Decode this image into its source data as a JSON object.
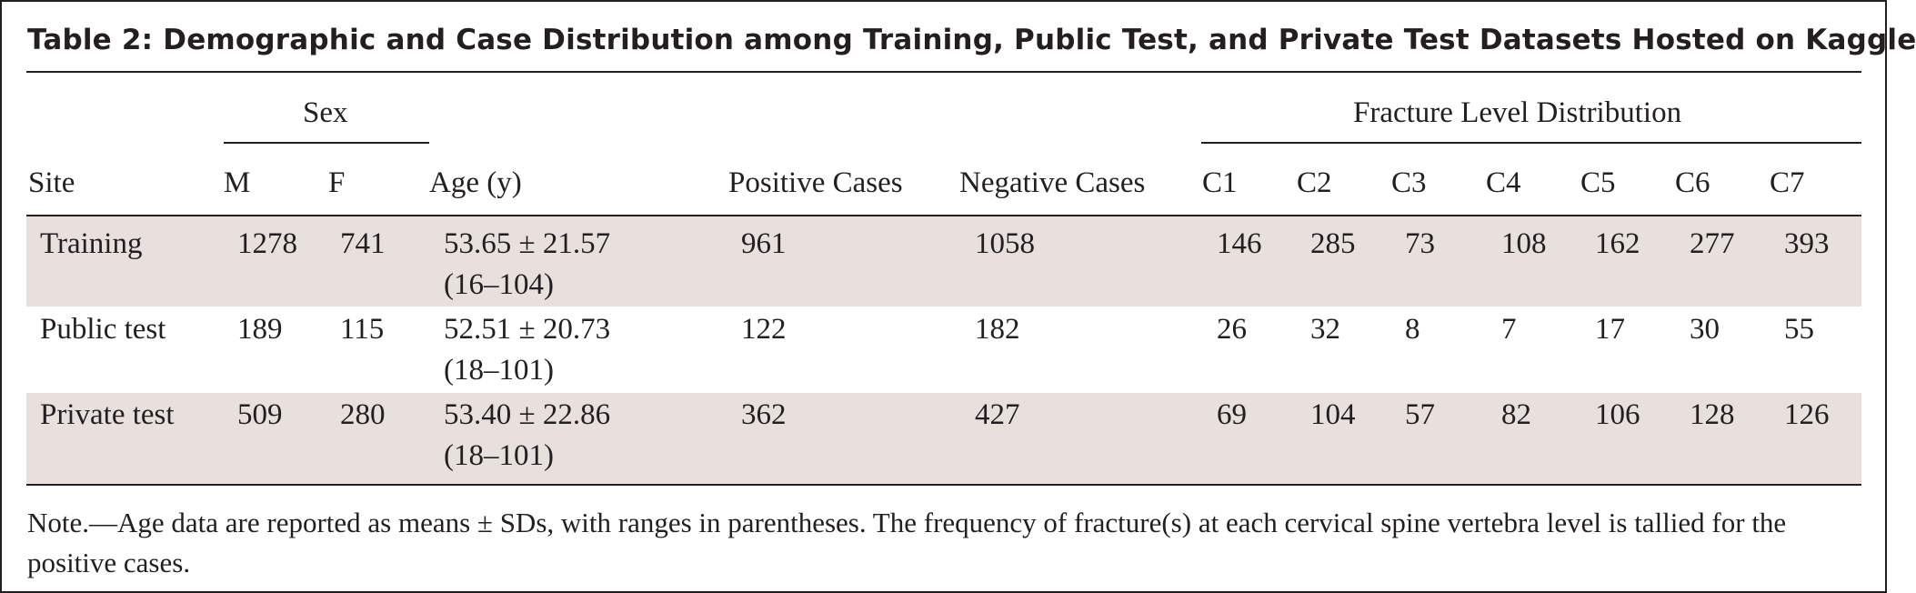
{
  "title": "Table 2: Demographic and Case Distribution among Training, Public Test, and Private Test Datasets Hosted on Kaggle",
  "group_headers": {
    "sex": "Sex",
    "fracture": "Fracture Level Distribution"
  },
  "columns": {
    "site": "Site",
    "m": "M",
    "f": "F",
    "age": "Age (y)",
    "positive": "Positive Cases",
    "negative": "Negative Cases",
    "c1": "C1",
    "c2": "C2",
    "c3": "C3",
    "c4": "C4",
    "c5": "C5",
    "c6": "C6",
    "c7": "C7"
  },
  "rows": [
    {
      "site": "Training",
      "m": "1278",
      "f": "741",
      "age_mean": "53.65 ± 21.57",
      "age_range": "(16–104)",
      "positive": "961",
      "negative": "1058",
      "c1": "146",
      "c2": "285",
      "c3": "73",
      "c4": "108",
      "c5": "162",
      "c6": "277",
      "c7": "393"
    },
    {
      "site": "Public test",
      "m": "189",
      "f": "115",
      "age_mean": "52.51 ± 20.73",
      "age_range": "(18–101)",
      "positive": "122",
      "negative": "182",
      "c1": "26",
      "c2": "32",
      "c3": "8",
      "c4": "7",
      "c5": "17",
      "c6": "30",
      "c7": "55"
    },
    {
      "site": "Private test",
      "m": "509",
      "f": "280",
      "age_mean": "53.40 ± 22.86",
      "age_range": "(18–101)",
      "positive": "362",
      "negative": "427",
      "c1": "69",
      "c2": "104",
      "c3": "57",
      "c4": "82",
      "c5": "106",
      "c6": "128",
      "c7": "126"
    }
  ],
  "note": "Note.—Age data are reported as means ± SDs, with ranges in parentheses. The frequency of fracture(s) at each cervical spine vertebra level is tallied for the positive cases.",
  "colors": {
    "row_shade": "#e7e0dc",
    "ink": "#231f20"
  }
}
